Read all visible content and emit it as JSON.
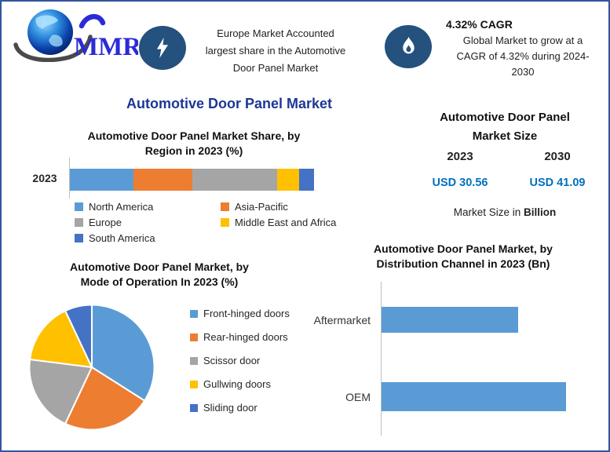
{
  "frame": {
    "border_color": "#33549C",
    "background": "#FFFFFF"
  },
  "header": {
    "logo": {
      "brand": "MMR"
    },
    "highlight": {
      "text": "Europe Market Accounted largest share in the Automotive Door Panel Market",
      "lines": [
        "Europe Market Accounted",
        "largest share in the Automotive",
        "Door Panel Market"
      ]
    },
    "cagr": {
      "heading": "4.32% CAGR",
      "text": "Global Market to grow at a CAGR of 4.32% during 2024-2030",
      "lines": [
        "Global Market to grow at a",
        "CAGR of 4.32% during 2024-",
        "2030"
      ]
    }
  },
  "page_title": "Automotive Door Panel Market",
  "market_size": {
    "title_lines": [
      "Automotive Door Panel",
      "Market Size"
    ],
    "columns": [
      {
        "year": "2023",
        "value": "USD 30.56"
      },
      {
        "year": "2030",
        "value": "USD 41.09"
      }
    ],
    "footnote_prefix": "Market Size in ",
    "footnote_bold": "Billion",
    "value_color": "#0070C0"
  },
  "chart_data": [
    {
      "type": "bar",
      "subtype": "stacked-horizontal",
      "title": "Automotive Door Panel Market Share, by Region in 2023 (%)",
      "title_lines": [
        "Automotive Door Panel Market Share, by",
        "Region in 2023 (%)"
      ],
      "categories": [
        "2023"
      ],
      "series": [
        {
          "name": "North America",
          "values": [
            26
          ],
          "color": "#5B9BD5"
        },
        {
          "name": "Asia-Pacific",
          "values": [
            24
          ],
          "color": "#ED7D31"
        },
        {
          "name": "Europe",
          "values": [
            35
          ],
          "color": "#A5A5A5"
        },
        {
          "name": "Middle East and Africa",
          "values": [
            9
          ],
          "color": "#FFC000"
        },
        {
          "name": "South America",
          "values": [
            6
          ],
          "color": "#4472C4"
        }
      ],
      "unit": "%",
      "values_estimated_from_pixels": true,
      "legend_position": "bottom",
      "grid": false
    },
    {
      "type": "pie",
      "title": "Automotive Door Panel Market, by Mode of Operation In 2023 (%)",
      "title_lines": [
        "Automotive Door Panel Market, by",
        "Mode of Operation In 2023 (%)"
      ],
      "labels": [
        "Front-hinged doors",
        "Rear-hinged doors",
        "Scissor door",
        "Gullwing doors",
        "Sliding door"
      ],
      "values": [
        34,
        23,
        20,
        16,
        7
      ],
      "colors": [
        "#5B9BD5",
        "#ED7D31",
        "#A5A5A5",
        "#FFC000",
        "#4472C4"
      ],
      "start_angle_deg": 0,
      "direction": "clockwise",
      "unit": "%",
      "values_estimated_from_pixels": true,
      "legend_position": "right"
    },
    {
      "type": "bar",
      "subtype": "horizontal",
      "title": "Automotive Door Panel Market, by Distribution Channel in 2023 (Bn)",
      "title_lines": [
        "Automotive Door Panel Market, by",
        "Distribution Channel in 2023 (Bn)"
      ],
      "categories": [
        "Aftermarket",
        "OEM"
      ],
      "values": [
        0.74,
        1.0
      ],
      "unit": "relative bar length (no axis scale shown)",
      "bar_color": "#5B9BD5",
      "values_estimated_from_pixels": true,
      "grid": false
    }
  ]
}
